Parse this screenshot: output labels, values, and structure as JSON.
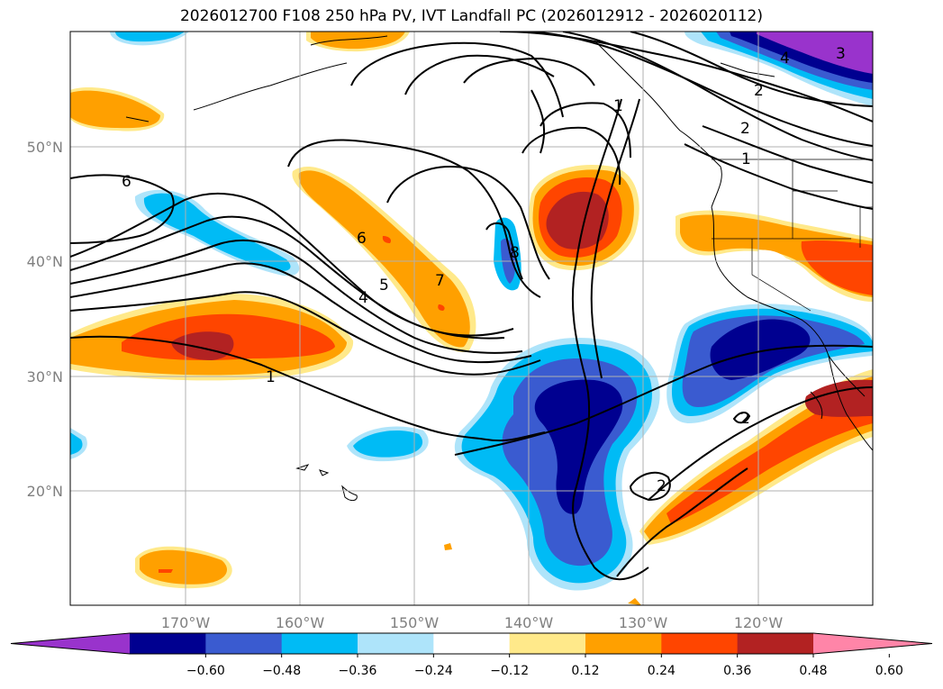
{
  "title": "2026012700 F108 250 hPa PV, IVT Landfall PC (2026012912 - 2026020112)",
  "map": {
    "lon_ticks": [
      "170°W",
      "160°W",
      "150°W",
      "140°W",
      "130°W",
      "120°W"
    ],
    "lat_ticks": [
      "50°N",
      "40°N",
      "30°N",
      "20°N"
    ],
    "contour_labels": [
      "1",
      "2",
      "4",
      "5",
      "6",
      "7",
      "8",
      "6",
      "4",
      "3",
      "2",
      "1",
      "2",
      "2",
      "1"
    ]
  },
  "colorbar": {
    "ticks": [
      "−0.60",
      "−0.48",
      "−0.36",
      "−0.24",
      "−0.12",
      "0.12",
      "0.24",
      "0.36",
      "0.48",
      "0.60"
    ],
    "colors": [
      "#9933cc",
      "#000090",
      "#3a5bd0",
      "#00bbf5",
      "#aee4fa",
      "#ffffff",
      "#ffe98a",
      "#ffa000",
      "#ff4500",
      "#b22222",
      "#ff85a8"
    ]
  },
  "colors": {
    "orange": "#ffa000",
    "red_orange": "#ff4500",
    "dark_red": "#b22222",
    "light_yellow": "#ffe98a",
    "light_blue": "#aee4fa",
    "cyan": "#00bbf5",
    "royal_blue": "#3a5bd0",
    "navy": "#000090",
    "purple": "#9933cc"
  }
}
